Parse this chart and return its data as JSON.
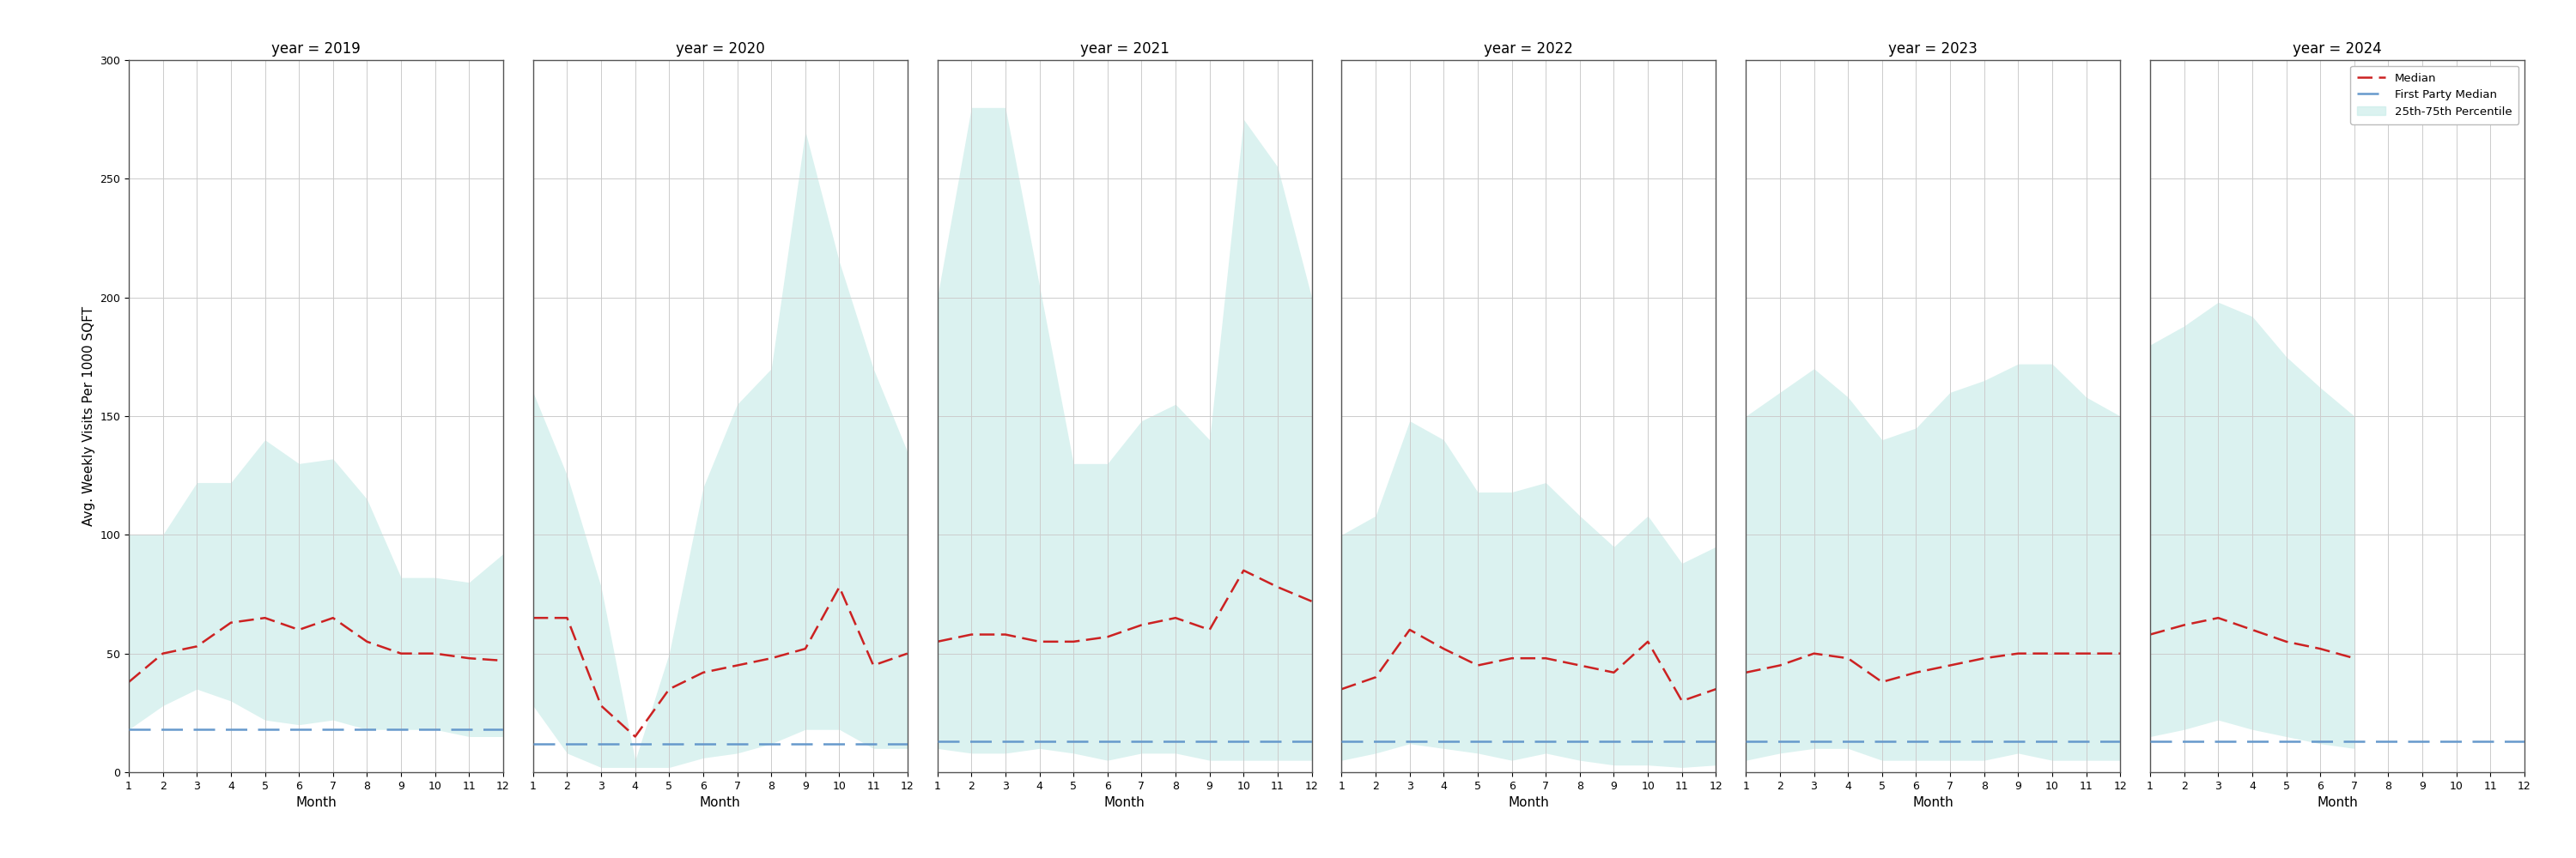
{
  "years": [
    2019,
    2020,
    2021,
    2022,
    2023,
    2024
  ],
  "months": [
    1,
    2,
    3,
    4,
    5,
    6,
    7,
    8,
    9,
    10,
    11,
    12
  ],
  "median": {
    "2019": [
      38,
      50,
      53,
      63,
      65,
      60,
      65,
      55,
      50,
      50,
      48,
      47
    ],
    "2020": [
      65,
      65,
      28,
      15,
      35,
      42,
      45,
      48,
      52,
      78,
      45,
      50
    ],
    "2021": [
      55,
      58,
      58,
      55,
      55,
      57,
      62,
      65,
      60,
      85,
      78,
      72
    ],
    "2022": [
      35,
      40,
      60,
      52,
      45,
      48,
      48,
      45,
      42,
      55,
      30,
      35
    ],
    "2023": [
      42,
      45,
      50,
      48,
      38,
      42,
      45,
      48,
      50,
      50,
      50,
      50
    ],
    "2024": [
      58,
      62,
      65,
      60,
      55,
      52,
      48
    ]
  },
  "p25": {
    "2019": [
      18,
      28,
      35,
      30,
      22,
      20,
      22,
      18,
      18,
      18,
      15,
      15
    ],
    "2020": [
      28,
      8,
      2,
      2,
      2,
      6,
      8,
      12,
      18,
      18,
      10,
      10
    ],
    "2021": [
      10,
      8,
      8,
      10,
      8,
      5,
      8,
      8,
      5,
      5,
      5,
      5
    ],
    "2022": [
      5,
      8,
      12,
      10,
      8,
      5,
      8,
      5,
      3,
      3,
      2,
      3
    ],
    "2023": [
      5,
      8,
      10,
      10,
      5,
      5,
      5,
      5,
      8,
      5,
      5,
      5
    ],
    "2024": [
      15,
      18,
      22,
      18,
      15,
      12,
      10
    ]
  },
  "p75": {
    "2019": [
      100,
      100,
      122,
      122,
      140,
      130,
      132,
      115,
      82,
      82,
      80,
      92
    ],
    "2020": [
      160,
      125,
      78,
      5,
      50,
      120,
      155,
      170,
      270,
      215,
      170,
      135
    ],
    "2021": [
      200,
      280,
      280,
      205,
      130,
      130,
      148,
      155,
      140,
      275,
      255,
      200
    ],
    "2022": [
      100,
      108,
      148,
      140,
      118,
      118,
      122,
      108,
      95,
      108,
      88,
      95
    ],
    "2023": [
      150,
      160,
      170,
      158,
      140,
      145,
      160,
      165,
      172,
      172,
      158,
      150
    ],
    "2024": [
      180,
      188,
      198,
      192,
      175,
      162,
      150
    ]
  },
  "first_party_median": {
    "2019": 18,
    "2020": 12,
    "2021": 13,
    "2022": 13,
    "2023": 13,
    "2024": 13
  },
  "ylim": [
    0,
    300
  ],
  "yticks": [
    0,
    50,
    100,
    150,
    200,
    250,
    300
  ],
  "ylabel": "Avg. Weekly Visits Per 1000 SQFT",
  "xlabel": "Month",
  "fill_color": "#c8ece8",
  "fill_alpha": 0.65,
  "median_color": "#cc2222",
  "first_party_color": "#6699cc",
  "grid_color": "#cccccc",
  "background_color": "#ffffff"
}
